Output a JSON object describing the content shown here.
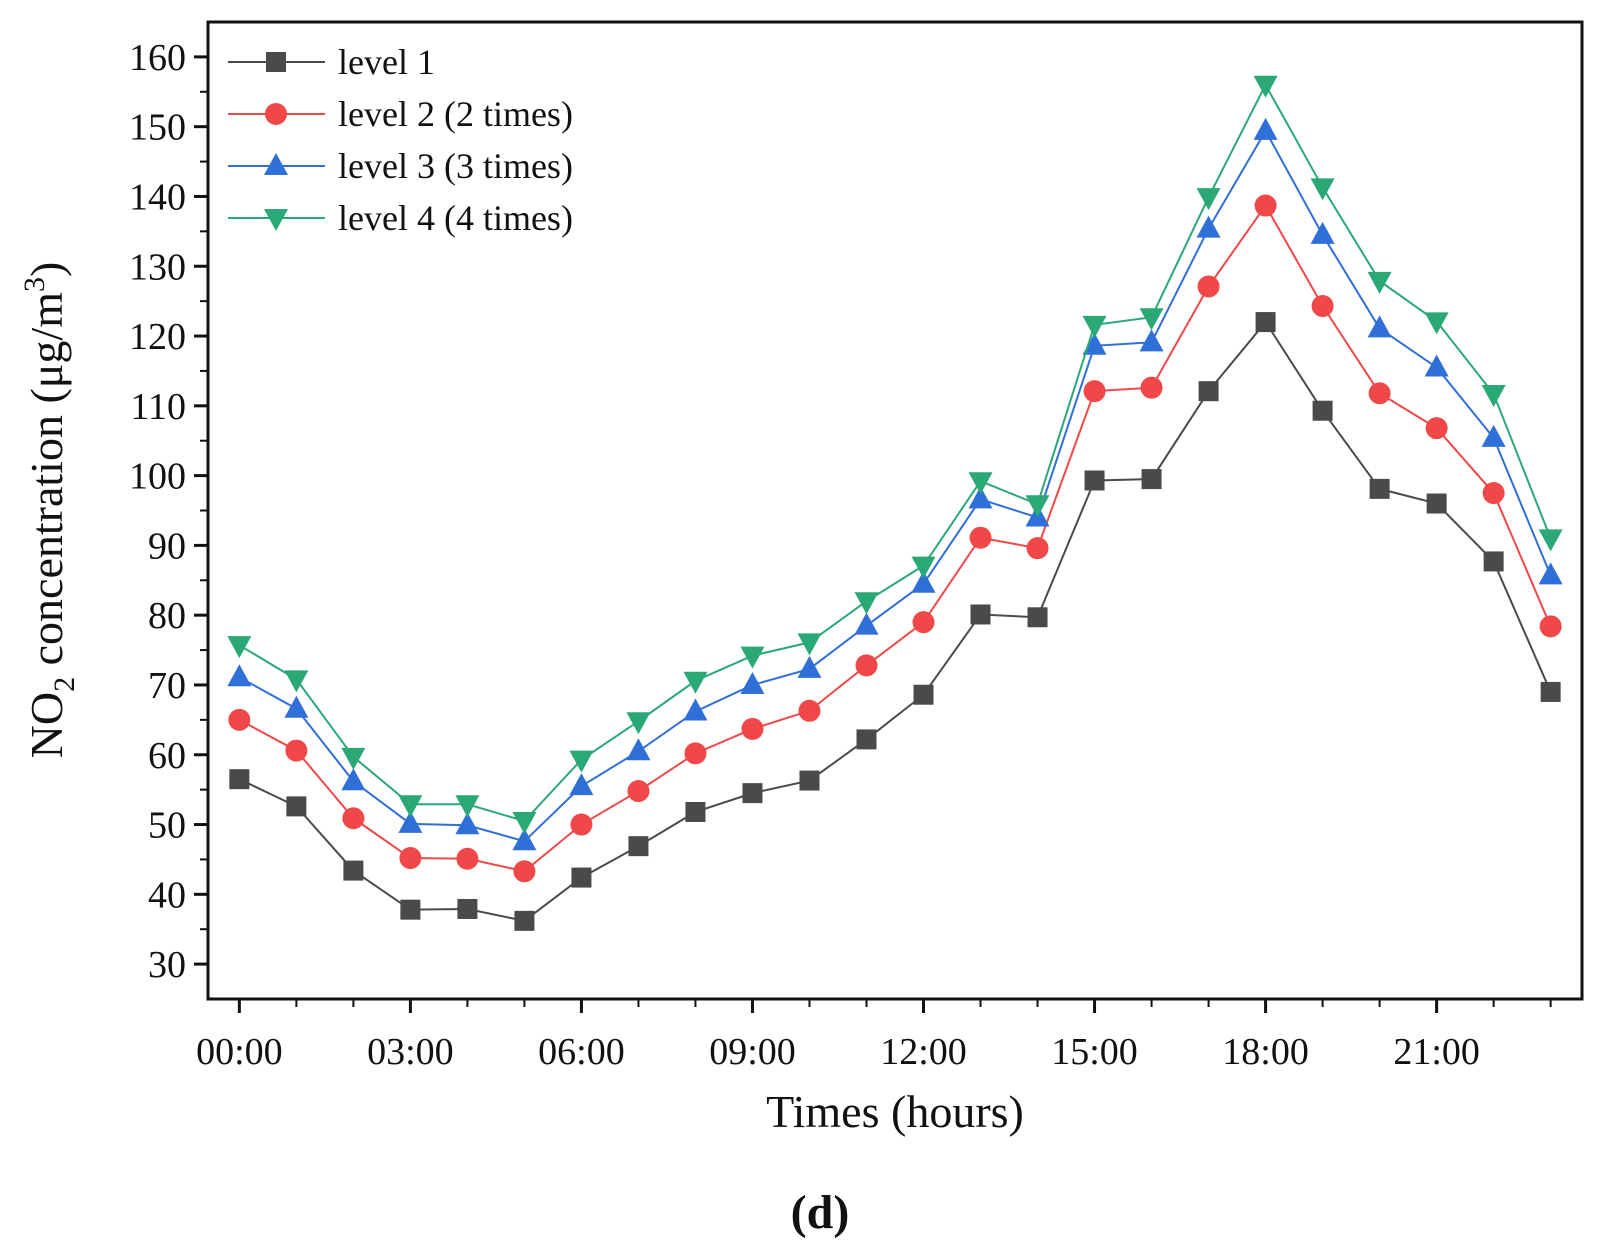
{
  "chart_data": {
    "type": "line",
    "title": "",
    "panel_label": "(d)",
    "xlabel": "Times (hours)",
    "ylabel_prefix": "NO",
    "ylabel_sub": "2",
    "ylabel_mid": " concentration (μg/m",
    "ylabel_sup": "3",
    "ylabel_suffix": ")",
    "ylim": [
      25,
      165
    ],
    "yticks": [
      30,
      40,
      50,
      60,
      70,
      80,
      90,
      100,
      110,
      120,
      130,
      140,
      150,
      160
    ],
    "x": [
      0,
      1,
      2,
      3,
      4,
      5,
      6,
      7,
      8,
      9,
      10,
      11,
      12,
      13,
      14,
      15,
      16,
      17,
      18,
      19,
      20,
      21,
      22,
      23
    ],
    "xlim": [
      -0.55,
      23.55
    ],
    "xticks": [
      0,
      3,
      6,
      9,
      12,
      15,
      18,
      21
    ],
    "xtick_labels": [
      "00:00",
      "03:00",
      "06:00",
      "09:00",
      "12:00",
      "15:00",
      "18:00",
      "21:00"
    ],
    "legend_position": "top-left",
    "series": [
      {
        "name": "level 1",
        "color": "#4a4a4a",
        "marker": "square",
        "values": [
          56.5,
          52.6,
          43.4,
          37.8,
          37.9,
          36.2,
          42.4,
          46.9,
          51.8,
          54.5,
          56.3,
          62.2,
          68.6,
          80.1,
          79.7,
          99.3,
          99.5,
          112.1,
          122,
          109.3,
          98.1,
          96,
          87.7,
          69
        ]
      },
      {
        "name": "level 2 (2 times)",
        "color": "#f04848",
        "marker": "circle",
        "values": [
          65,
          60.6,
          50.9,
          45.2,
          45.1,
          43.3,
          50,
          54.8,
          60.2,
          63.7,
          66.3,
          72.8,
          79,
          91.1,
          89.6,
          112.1,
          112.6,
          127.1,
          138.7,
          124.3,
          111.8,
          106.8,
          97.5,
          78.4
        ]
      },
      {
        "name": "level 3 (3 times)",
        "color": "#2f6fd8",
        "marker": "triangle-up",
        "values": [
          71.1,
          66.6,
          56.2,
          50.1,
          49.9,
          47.6,
          55.5,
          60.5,
          66.2,
          70,
          72.3,
          78.5,
          84.5,
          96.6,
          94,
          118.6,
          119.1,
          135.4,
          149.4,
          134.5,
          121.1,
          115.5,
          105.4,
          85.7
        ]
      },
      {
        "name": "level 4 (4 times)",
        "color": "#2aa876",
        "marker": "triangle-down",
        "values": [
          75.7,
          70.8,
          59.7,
          52.9,
          52.9,
          50.5,
          59.3,
          64.8,
          70.6,
          74.2,
          76.1,
          82,
          87.1,
          99.2,
          95.9,
          121.6,
          122.7,
          139.9,
          156,
          141.3,
          127.9,
          122.1,
          111.7,
          91
        ]
      }
    ]
  }
}
